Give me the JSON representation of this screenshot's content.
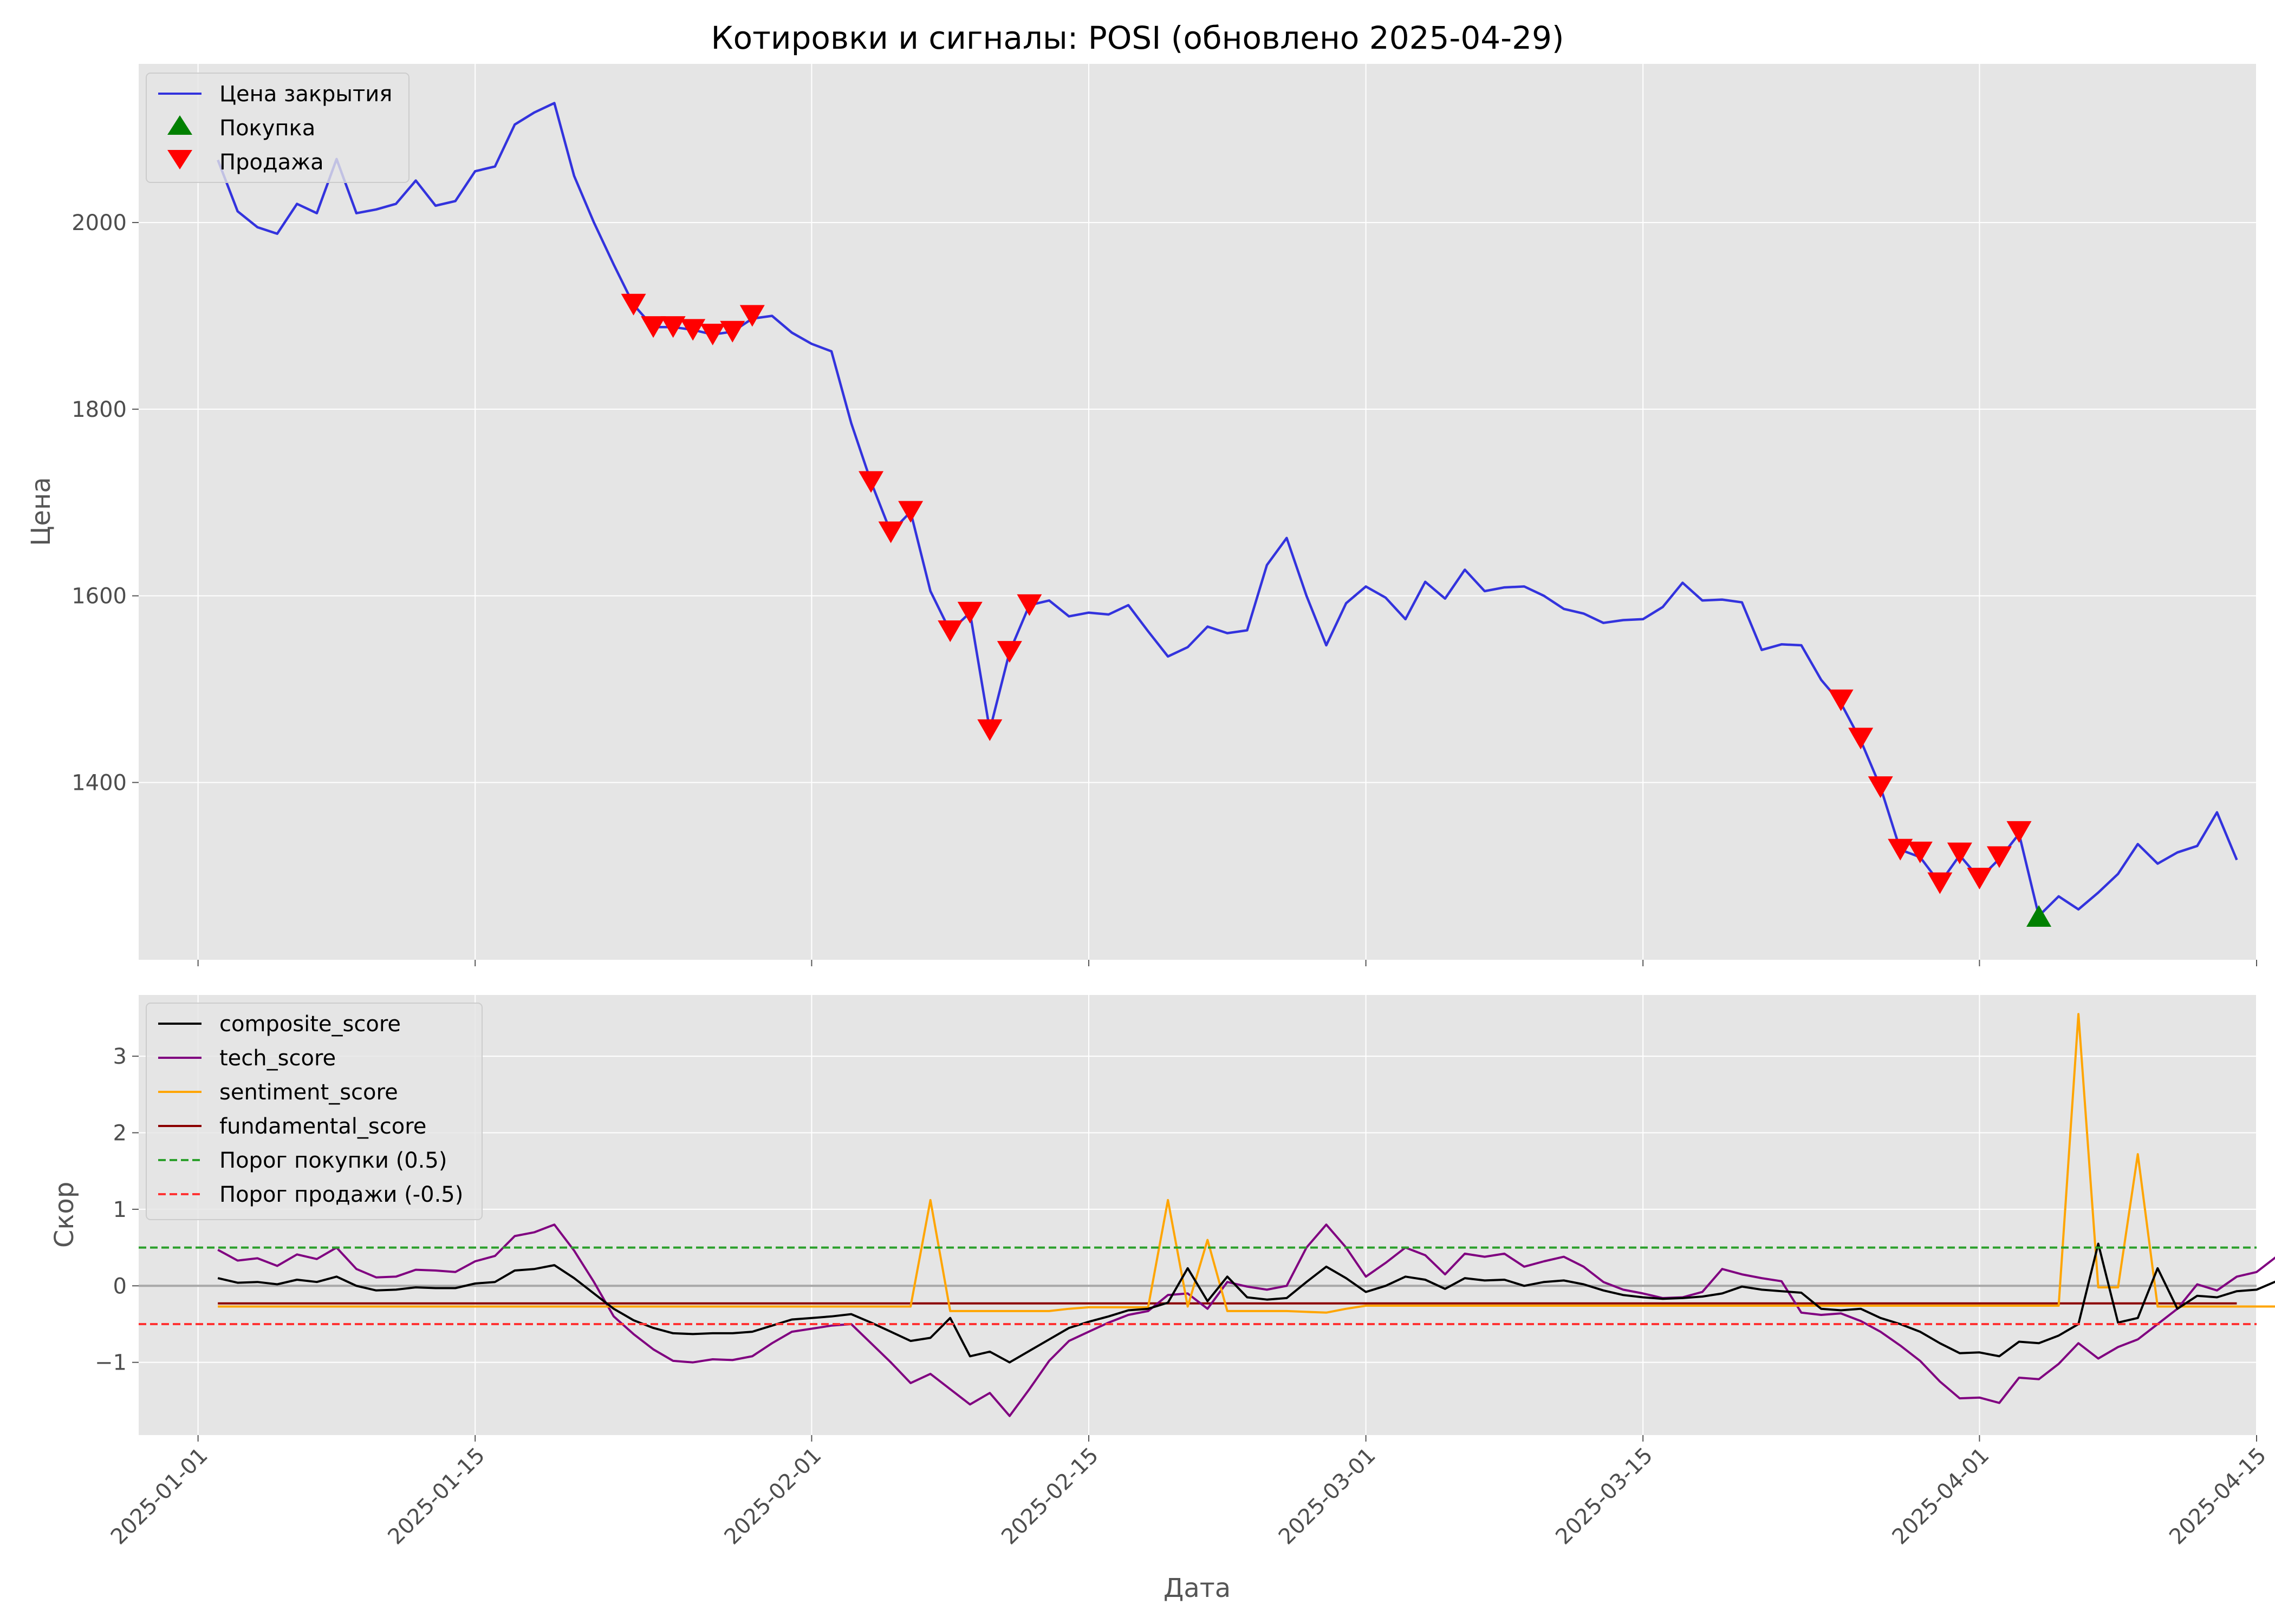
{
  "title": "Котировки и сигналы: POSI (обновлено 2025-04-29)",
  "chart_data": [
    {
      "type": "line",
      "ylabel": "Цена",
      "ylim": [
        1210,
        2170
      ],
      "yticks": [
        1400,
        1600,
        1800,
        2000
      ],
      "xlim": [
        "2024-12-29",
        "2025-04-15"
      ],
      "grid": true,
      "legend_position": "top-left",
      "series": [
        {
          "name": "Цена закрытия",
          "color": "#3333dd",
          "points": [
            [
              "2025-01-02",
              2067
            ],
            [
              "2025-01-03",
              2012
            ],
            [
              "2025-01-04",
              1995
            ],
            [
              "2025-01-05",
              1988
            ],
            [
              "2025-01-06",
              2020
            ],
            [
              "2025-01-07",
              2010
            ],
            [
              "2025-01-08",
              2068
            ],
            [
              "2025-01-09",
              2010
            ],
            [
              "2025-01-10",
              2014
            ],
            [
              "2025-01-11",
              2020
            ],
            [
              "2025-01-12",
              2045
            ],
            [
              "2025-01-13",
              2018
            ],
            [
              "2025-01-14",
              2023
            ],
            [
              "2025-01-15",
              2055
            ],
            [
              "2025-01-16",
              2060
            ],
            [
              "2025-01-17",
              2105
            ],
            [
              "2025-01-18",
              2118
            ],
            [
              "2025-01-19",
              2128
            ],
            [
              "2025-01-20",
              2050
            ],
            [
              "2025-01-21",
              2000
            ],
            [
              "2025-01-22",
              1955
            ],
            [
              "2025-01-23",
              1912
            ],
            [
              "2025-01-24",
              1888
            ],
            [
              "2025-01-25",
              1888
            ],
            [
              "2025-01-26",
              1885
            ],
            [
              "2025-01-27",
              1880
            ],
            [
              "2025-01-28",
              1883
            ],
            [
              "2025-01-29",
              1897
            ],
            [
              "2025-01-30",
              1900
            ],
            [
              "2025-01-31",
              1882
            ],
            [
              "2025-02-01",
              1870
            ],
            [
              "2025-02-02",
              1862
            ],
            [
              "2025-02-03",
              1785
            ],
            [
              "2025-02-04",
              1722
            ],
            [
              "2025-02-05",
              1668
            ],
            [
              "2025-02-06",
              1690
            ],
            [
              "2025-02-07",
              1605
            ],
            [
              "2025-02-08",
              1562
            ],
            [
              "2025-02-09",
              1582
            ],
            [
              "2025-02-10",
              1456
            ],
            [
              "2025-02-11",
              1540
            ],
            [
              "2025-02-12",
              1590
            ],
            [
              "2025-02-13",
              1595
            ],
            [
              "2025-02-14",
              1578
            ],
            [
              "2025-02-15",
              1582
            ],
            [
              "2025-02-16",
              1580
            ],
            [
              "2025-02-17",
              1590
            ],
            [
              "2025-02-18",
              1562
            ],
            [
              "2025-02-19",
              1535
            ],
            [
              "2025-02-20",
              1545
            ],
            [
              "2025-02-21",
              1567
            ],
            [
              "2025-02-22",
              1560
            ],
            [
              "2025-02-23",
              1563
            ],
            [
              "2025-02-24",
              1633
            ],
            [
              "2025-02-25",
              1662
            ],
            [
              "2025-02-26",
              1600
            ],
            [
              "2025-02-27",
              1547
            ],
            [
              "2025-02-28",
              1592
            ],
            [
              "2025-03-01",
              1610
            ],
            [
              "2025-03-02",
              1598
            ],
            [
              "2025-03-03",
              1575
            ],
            [
              "2025-03-04",
              1615
            ],
            [
              "2025-03-05",
              1597
            ],
            [
              "2025-03-06",
              1628
            ],
            [
              "2025-03-07",
              1605
            ],
            [
              "2025-03-08",
              1609
            ],
            [
              "2025-03-09",
              1610
            ],
            [
              "2025-03-10",
              1600
            ],
            [
              "2025-03-11",
              1586
            ],
            [
              "2025-03-12",
              1581
            ],
            [
              "2025-03-13",
              1571
            ],
            [
              "2025-03-14",
              1574
            ],
            [
              "2025-03-15",
              1575
            ],
            [
              "2025-03-16",
              1588
            ],
            [
              "2025-03-17",
              1614
            ],
            [
              "2025-03-18",
              1595
            ],
            [
              "2025-03-19",
              1596
            ],
            [
              "2025-03-20",
              1593
            ],
            [
              "2025-03-21",
              1542
            ],
            [
              "2025-03-22",
              1548
            ],
            [
              "2025-03-23",
              1547
            ],
            [
              "2025-03-24",
              1510
            ],
            [
              "2025-03-25",
              1485
            ],
            [
              "2025-03-26",
              1445
            ],
            [
              "2025-03-27",
              1395
            ],
            [
              "2025-03-28",
              1328
            ],
            [
              "2025-03-29",
              1320
            ],
            [
              "2025-03-30",
              1292
            ],
            [
              "2025-03-31",
              1322
            ],
            [
              "2025-04-01",
              1297
            ],
            [
              "2025-04-02",
              1318
            ],
            [
              "2025-04-03",
              1345
            ],
            [
              "2025-04-04",
              1257
            ],
            [
              "2025-04-05",
              1278
            ],
            [
              "2025-04-06",
              1264
            ],
            [
              "2025-04-07",
              1282
            ],
            [
              "2025-04-08",
              1302
            ],
            [
              "2025-04-09",
              1334
            ],
            [
              "2025-04-10",
              1313
            ],
            [
              "2025-04-11",
              1325
            ],
            [
              "2025-04-12",
              1332
            ],
            [
              "2025-04-13",
              1368
            ],
            [
              "2025-04-14",
              1317
            ]
          ]
        },
        {
          "name": "Покупка",
          "color": "#008000",
          "marker": "triangle-up",
          "points": [
            [
              "2025-04-04",
              1257
            ]
          ]
        },
        {
          "name": "Продажа",
          "color": "#ff0000",
          "marker": "triangle-down",
          "points": [
            [
              "2025-01-23",
              1912
            ],
            [
              "2025-01-24",
              1888
            ],
            [
              "2025-01-25",
              1888
            ],
            [
              "2025-01-26",
              1885
            ],
            [
              "2025-01-27",
              1880
            ],
            [
              "2025-01-28",
              1883
            ],
            [
              "2025-01-29",
              1900
            ],
            [
              "2025-02-04",
              1722
            ],
            [
              "2025-02-05",
              1668
            ],
            [
              "2025-02-06",
              1690
            ],
            [
              "2025-02-08",
              1562
            ],
            [
              "2025-02-09",
              1582
            ],
            [
              "2025-02-10",
              1456
            ],
            [
              "2025-02-11",
              1540
            ],
            [
              "2025-02-12",
              1590
            ],
            [
              "2025-03-25",
              1488
            ],
            [
              "2025-03-26",
              1447
            ],
            [
              "2025-03-27",
              1395
            ],
            [
              "2025-03-28",
              1328
            ],
            [
              "2025-03-29",
              1325
            ],
            [
              "2025-03-30",
              1292
            ],
            [
              "2025-03-31",
              1324
            ],
            [
              "2025-04-01",
              1297
            ],
            [
              "2025-04-02",
              1320
            ],
            [
              "2025-04-03",
              1347
            ]
          ]
        }
      ]
    },
    {
      "type": "line",
      "ylabel": "Скор",
      "xlabel": "Дата",
      "ylim": [
        -1.95,
        3.8
      ],
      "yticks": [
        -1,
        0,
        1,
        2,
        3
      ],
      "xlim": [
        "2024-12-29",
        "2025-04-15"
      ],
      "xticks": [
        "2025-01-01",
        "2025-01-15",
        "2025-02-01",
        "2025-02-15",
        "2025-03-01",
        "2025-03-15",
        "2025-04-01",
        "2025-04-15"
      ],
      "grid": true,
      "legend_position": "top-left",
      "series": [
        {
          "name": "composite_score",
          "color": "#000000",
          "start": "2025-01-02",
          "values": [
            0.1,
            0.04,
            0.05,
            0.02,
            0.08,
            0.05,
            0.12,
            0.0,
            -0.06,
            -0.05,
            -0.02,
            -0.03,
            -0.03,
            0.03,
            0.05,
            0.2,
            0.22,
            0.27,
            0.1,
            -0.1,
            -0.3,
            -0.45,
            -0.55,
            -0.62,
            -0.63,
            -0.62,
            -0.62,
            -0.6,
            -0.52,
            -0.44,
            -0.42,
            -0.4,
            -0.37,
            -0.48,
            -0.6,
            -0.72,
            -0.68,
            -0.42,
            -0.92,
            -0.86,
            -1.0,
            -0.85,
            -0.7,
            -0.55,
            -0.47,
            -0.4,
            -0.32,
            -0.3,
            -0.22,
            0.23,
            -0.2,
            0.12,
            -0.15,
            -0.18,
            -0.16,
            0.05,
            0.25,
            0.1,
            -0.08,
            0.0,
            0.12,
            0.08,
            -0.04,
            0.1,
            0.07,
            0.08,
            0.0,
            0.05,
            0.07,
            0.02,
            -0.06,
            -0.12,
            -0.15,
            -0.17,
            -0.16,
            -0.14,
            -0.1,
            -0.01,
            -0.05,
            -0.07,
            -0.09,
            -0.3,
            -0.32,
            -0.3,
            -0.42,
            -0.5,
            -0.6,
            -0.75,
            -0.88,
            -0.87,
            -0.92,
            -0.73,
            -0.75,
            -0.65,
            -0.5,
            0.55,
            -0.48,
            -0.42,
            0.23,
            -0.3,
            -0.13,
            -0.15,
            -0.07,
            -0.05,
            0.06,
            0.04
          ]
        },
        {
          "name": "tech_score",
          "color": "#800080",
          "start": "2025-01-02",
          "values": [
            0.47,
            0.33,
            0.36,
            0.26,
            0.41,
            0.35,
            0.5,
            0.22,
            0.11,
            0.12,
            0.21,
            0.2,
            0.18,
            0.32,
            0.39,
            0.65,
            0.7,
            0.8,
            0.46,
            0.05,
            -0.4,
            -0.63,
            -0.83,
            -0.98,
            -1.0,
            -0.96,
            -0.97,
            -0.92,
            -0.75,
            -0.6,
            -0.56,
            -0.52,
            -0.5,
            -0.75,
            -1.0,
            -1.27,
            -1.15,
            -1.35,
            -1.55,
            -1.4,
            -1.7,
            -1.35,
            -0.98,
            -0.72,
            -0.6,
            -0.48,
            -0.38,
            -0.33,
            -0.12,
            -0.1,
            -0.3,
            0.05,
            -0.01,
            -0.05,
            0.0,
            0.5,
            0.8,
            0.5,
            0.12,
            0.3,
            0.5,
            0.4,
            0.15,
            0.42,
            0.38,
            0.42,
            0.25,
            0.32,
            0.38,
            0.25,
            0.05,
            -0.05,
            -0.1,
            -0.16,
            -0.15,
            -0.08,
            0.22,
            0.15,
            0.1,
            0.06,
            -0.35,
            -0.38,
            -0.36,
            -0.46,
            -0.6,
            -0.78,
            -0.98,
            -1.25,
            -1.47,
            -1.46,
            -1.53,
            -1.2,
            -1.22,
            -1.02,
            -0.75,
            -0.95,
            -0.8,
            -0.7,
            -0.5,
            -0.3,
            0.02,
            -0.06,
            0.12,
            0.18,
            0.38,
            0.32
          ]
        },
        {
          "name": "sentiment_score",
          "color": "#ffa500",
          "start": "2025-01-02",
          "values": [
            -0.27,
            -0.27,
            -0.27,
            -0.27,
            -0.27,
            -0.27,
            -0.27,
            -0.27,
            -0.27,
            -0.27,
            -0.27,
            -0.27,
            -0.27,
            -0.27,
            -0.27,
            -0.27,
            -0.27,
            -0.27,
            -0.27,
            -0.27,
            -0.27,
            -0.27,
            -0.27,
            -0.27,
            -0.27,
            -0.27,
            -0.27,
            -0.27,
            -0.27,
            -0.27,
            -0.27,
            -0.27,
            -0.27,
            -0.27,
            -0.27,
            -0.27,
            1.12,
            -0.33,
            -0.33,
            -0.33,
            -0.33,
            -0.33,
            -0.33,
            -0.3,
            -0.28,
            -0.28,
            -0.28,
            -0.28,
            1.12,
            -0.27,
            0.6,
            -0.33,
            -0.33,
            -0.33,
            -0.33,
            -0.34,
            -0.35,
            -0.3,
            -0.26,
            -0.26,
            -0.26,
            -0.26,
            -0.26,
            -0.26,
            -0.26,
            -0.26,
            -0.26,
            -0.26,
            -0.26,
            -0.26,
            -0.26,
            -0.26,
            -0.26,
            -0.26,
            -0.26,
            -0.26,
            -0.26,
            -0.26,
            -0.26,
            -0.26,
            -0.26,
            -0.26,
            -0.26,
            -0.26,
            -0.26,
            -0.26,
            -0.26,
            -0.26,
            -0.26,
            -0.26,
            -0.26,
            -0.26,
            -0.26,
            -0.26,
            3.55,
            -0.02,
            -0.02,
            1.72,
            -0.27,
            -0.27,
            -0.27,
            -0.27,
            -0.27,
            -0.27,
            -0.27,
            -0.27
          ]
        },
        {
          "name": "fundamental_score",
          "color": "#8b0000",
          "start": "2025-01-02",
          "end": "2025-04-14",
          "constant": -0.23
        },
        {
          "name": "Порог покупки (0.5)",
          "color": "#2ca02c",
          "style": "dashed",
          "hline": 0.5
        },
        {
          "name": "Порог продажи (-0.5)",
          "color": "#ff3333",
          "style": "dashed",
          "hline": -0.5
        }
      ]
    }
  ]
}
